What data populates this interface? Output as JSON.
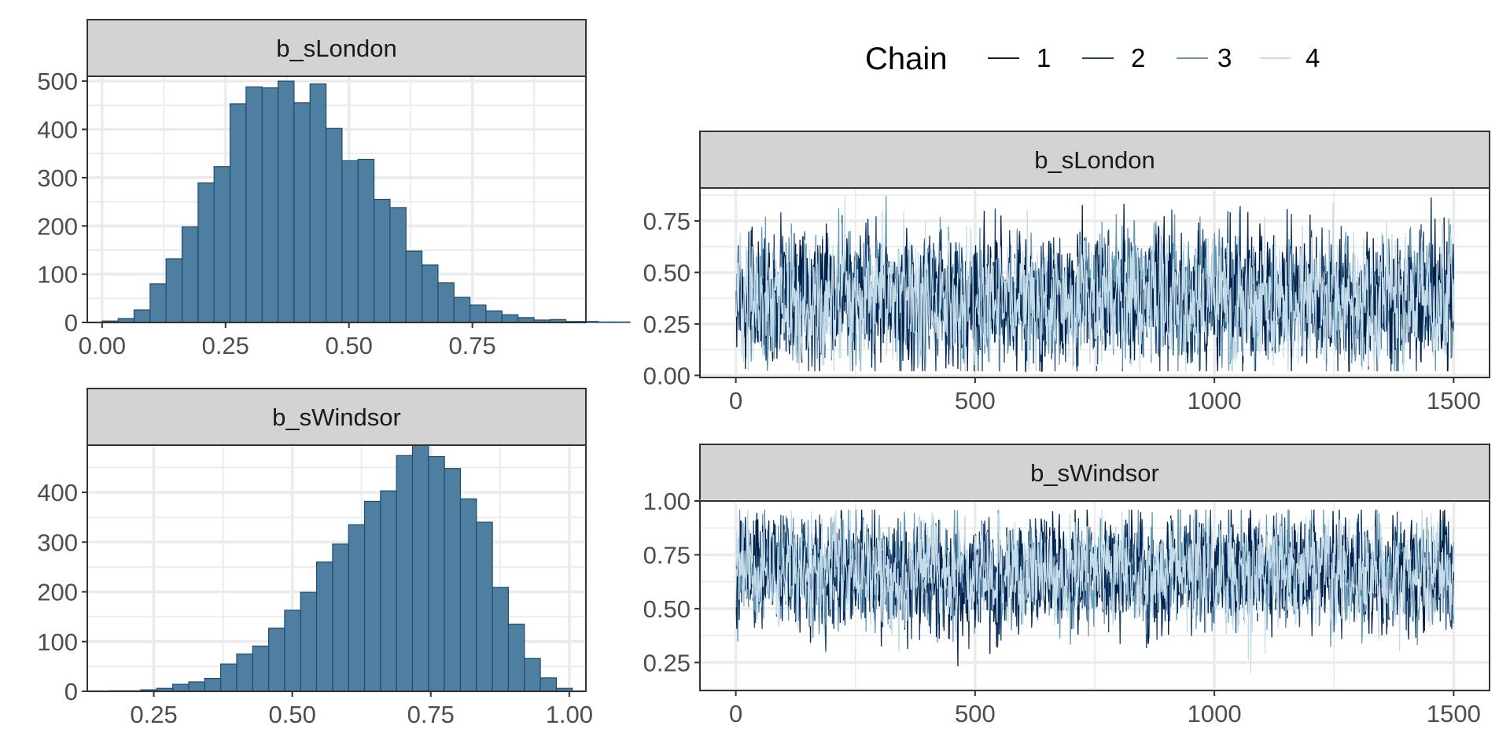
{
  "chart_data": [
    {
      "type": "bar",
      "subtype": "histogram",
      "facet": "b_sLondon",
      "xlim": [
        -0.03,
        0.98
      ],
      "ylim": [
        0,
        510
      ],
      "x_ticks": [
        0,
        0.25,
        0.5,
        0.75
      ],
      "x_tick_labels": [
        "0.00",
        "0.25",
        "0.50",
        "0.75"
      ],
      "y_ticks": [
        0,
        100,
        200,
        300,
        400,
        500
      ],
      "y_tick_labels": [
        "0",
        "100",
        "200",
        "300",
        "400",
        "500"
      ],
      "bins": {
        "start": 0.0,
        "width": 0.0324,
        "counts": [
          3,
          8,
          26,
          80,
          132,
          198,
          289,
          323,
          453,
          488,
          486,
          500,
          455,
          494,
          402,
          335,
          338,
          255,
          238,
          148,
          119,
          82,
          52,
          36,
          24,
          16,
          10,
          5,
          6,
          2,
          2,
          1,
          1
        ]
      },
      "fill": "#4f7fa0",
      "outline": "#1c4b70",
      "grid": true
    },
    {
      "type": "bar",
      "subtype": "histogram",
      "facet": "b_sWindsor",
      "xlim": [
        0.13,
        1.03
      ],
      "ylim": [
        0,
        495
      ],
      "x_ticks": [
        0.25,
        0.5,
        0.75,
        1.0
      ],
      "x_tick_labels": [
        "0.25",
        "0.50",
        "0.75",
        "1.00"
      ],
      "y_ticks": [
        0,
        100,
        200,
        300,
        400
      ],
      "y_tick_labels": [
        "0",
        "100",
        "200",
        "300",
        "400"
      ],
      "bins": {
        "start": 0.14,
        "width": 0.02885,
        "counts": [
          0,
          1,
          1,
          3,
          6,
          14,
          19,
          26,
          55,
          75,
          91,
          127,
          163,
          199,
          260,
          296,
          335,
          382,
          403,
          474,
          495,
          472,
          448,
          387,
          340,
          209,
          135,
          66,
          27,
          6
        ]
      },
      "fill": "#4f7fa0",
      "outline": "#1c4b70",
      "grid": true
    },
    {
      "type": "line",
      "subtype": "trace",
      "facet": "b_sLondon",
      "xlim": [
        -75,
        1575
      ],
      "ylim": [
        -0.01,
        0.91
      ],
      "x_ticks": [
        0,
        500,
        1000,
        1500
      ],
      "x_tick_labels": [
        "0",
        "500",
        "1000",
        "1500"
      ],
      "y_ticks": [
        0,
        0.25,
        0.5,
        0.75
      ],
      "y_tick_labels": [
        "0.00",
        "0.25",
        "0.50",
        "0.75"
      ],
      "iterations": 1500,
      "chain_center": 0.37,
      "chain_spread": 0.165,
      "chain_max": 0.87,
      "chain_min": 0.02,
      "grid": true
    },
    {
      "type": "line",
      "subtype": "trace",
      "facet": "b_sWindsor",
      "xlim": [
        -75,
        1575
      ],
      "ylim": [
        0.12,
        1.0
      ],
      "x_ticks": [
        0,
        500,
        1000,
        1500
      ],
      "x_tick_labels": [
        "0",
        "500",
        "1000",
        "1500"
      ],
      "y_ticks": [
        0.25,
        0.5,
        0.75,
        1.0
      ],
      "y_tick_labels": [
        "0.25",
        "0.50",
        "0.75",
        "1.00"
      ],
      "iterations": 1500,
      "chain_center": 0.67,
      "chain_spread": 0.13,
      "chain_max": 0.96,
      "chain_min": 0.17,
      "grid": true
    }
  ],
  "legend": {
    "title": "Chain",
    "position": "top",
    "entries": [
      {
        "label": "1",
        "color": "#011f4b"
      },
      {
        "label": "2",
        "color": "#1c456f"
      },
      {
        "label": "3",
        "color": "#6497b1"
      },
      {
        "label": "4",
        "color": "#c5dcea"
      }
    ]
  }
}
